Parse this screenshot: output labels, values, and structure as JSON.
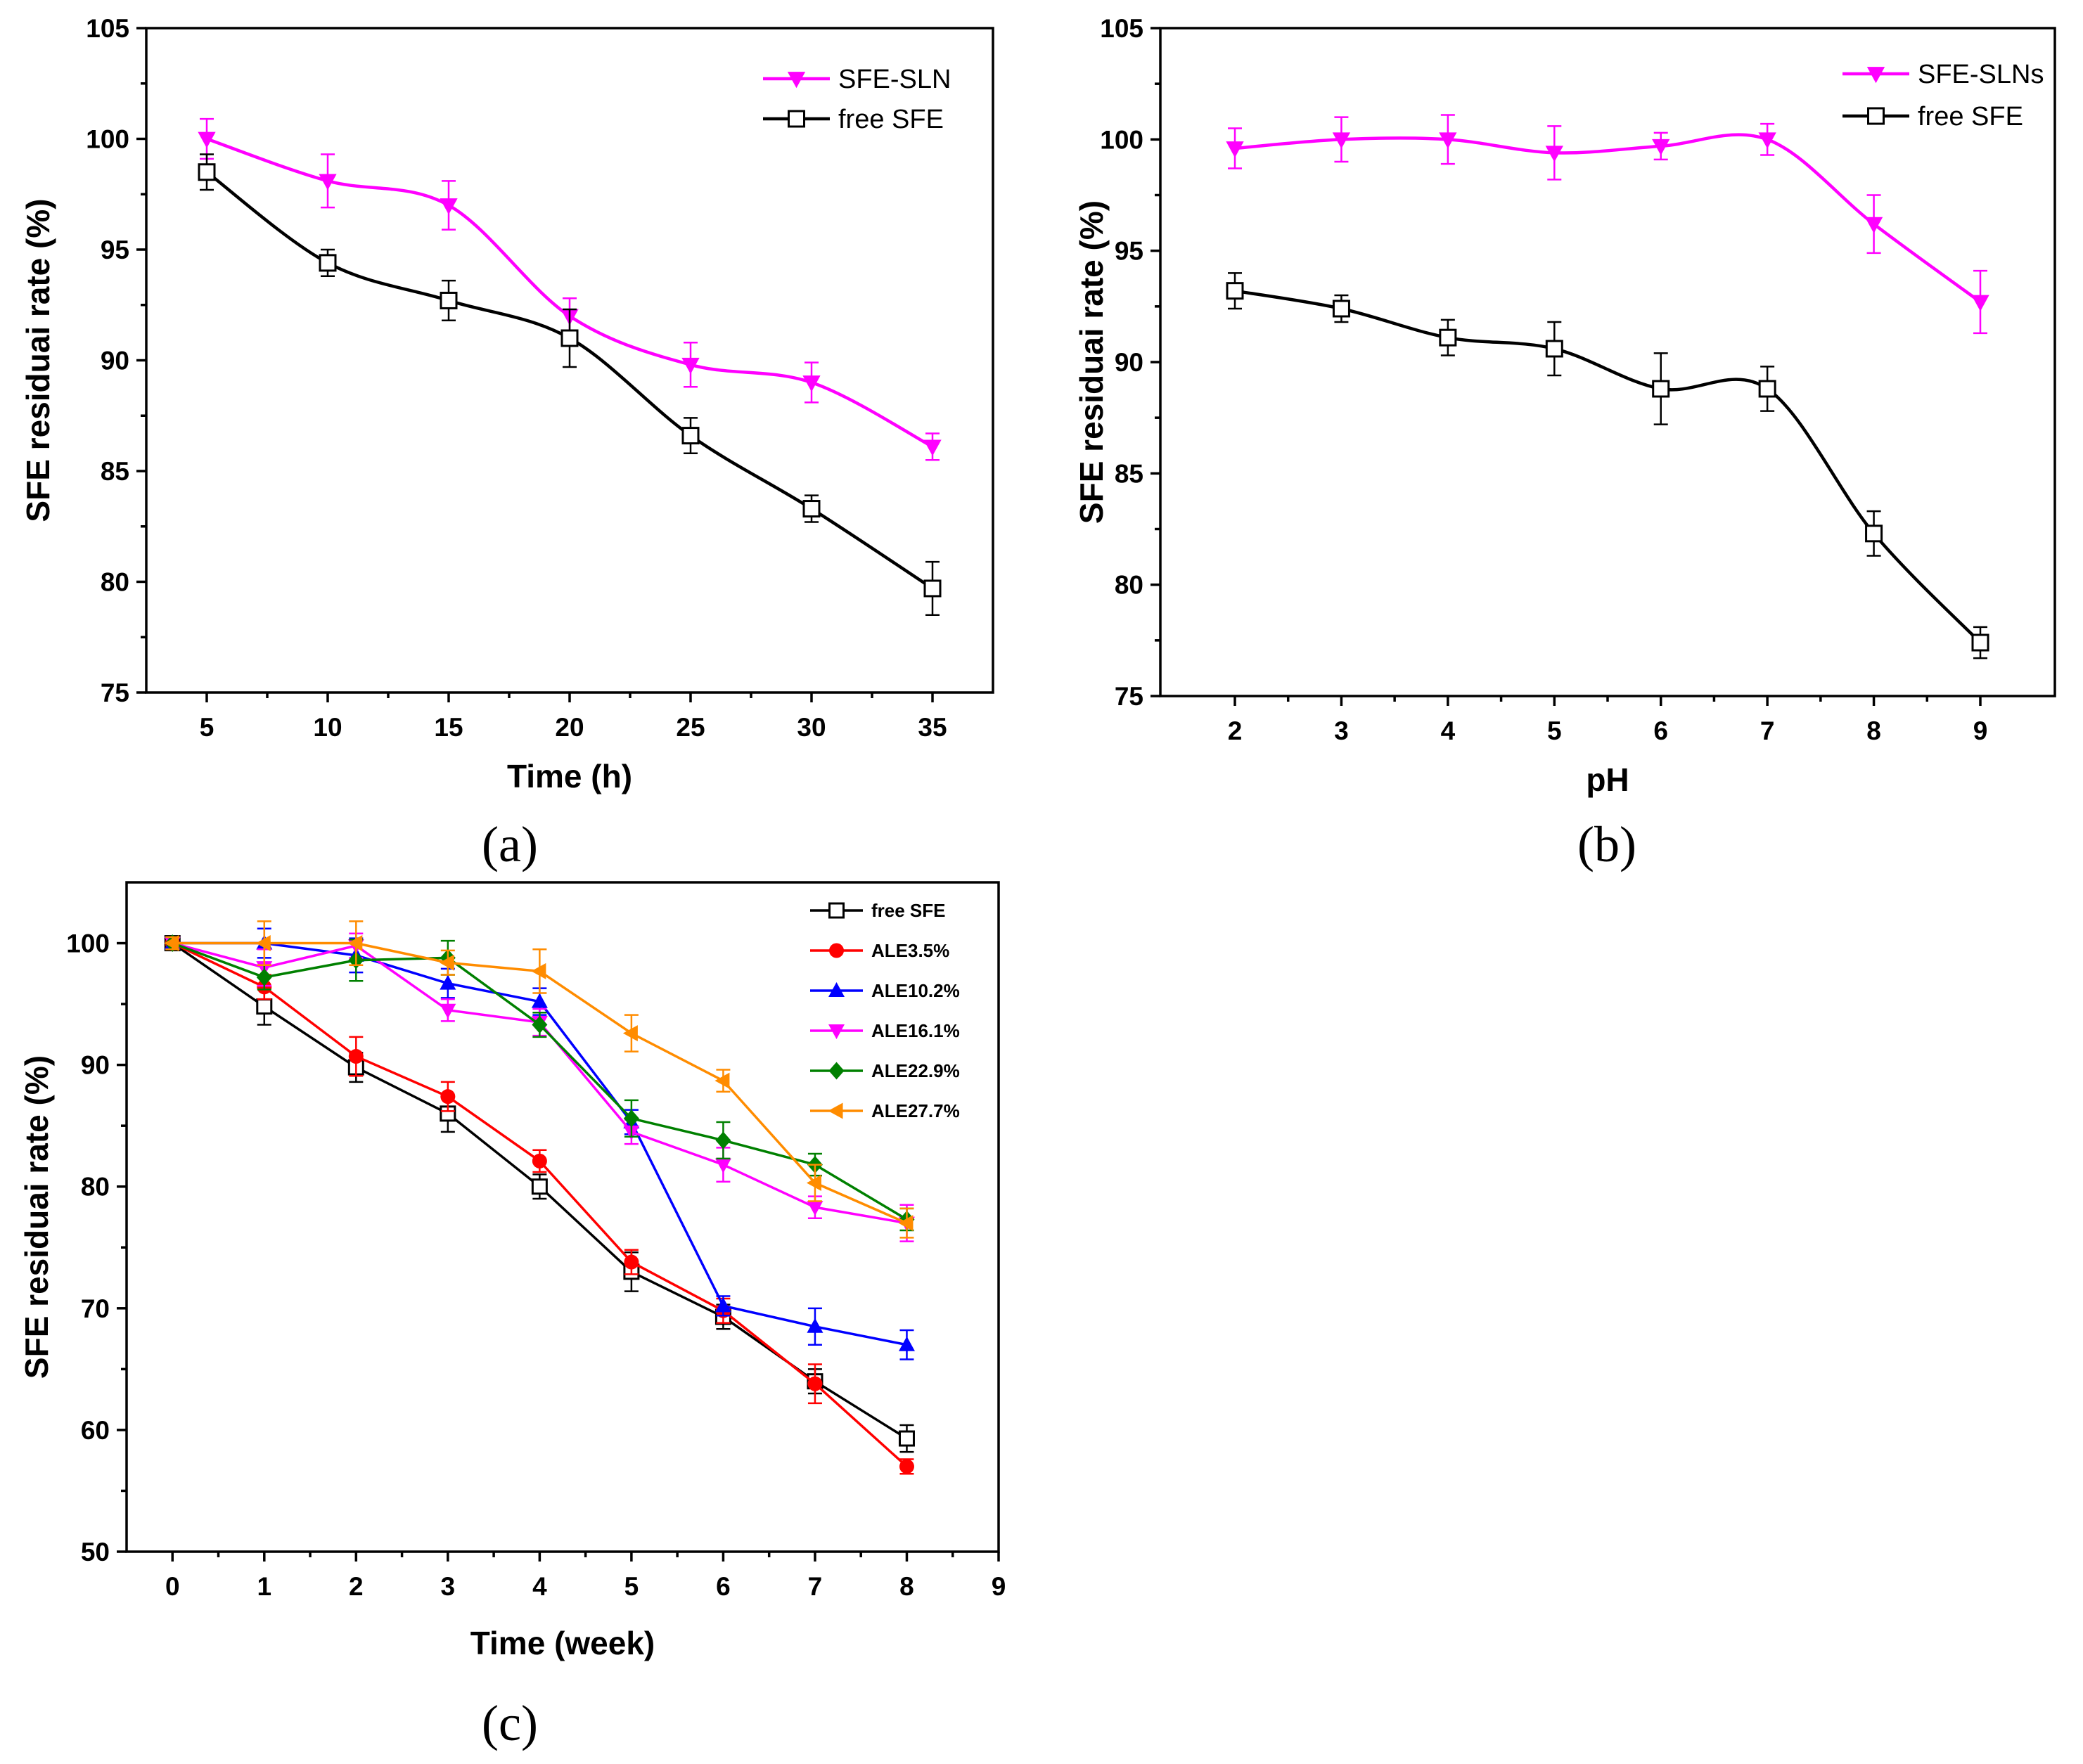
{
  "chart_data": [
    {
      "panel": "a",
      "label": "(a)",
      "type": "line",
      "xlabel": "Time (h)",
      "ylabel": "SFE residuai rate (%)",
      "xlim": [
        2.5,
        37.5
      ],
      "ylim": [
        75,
        105
      ],
      "xticks": [
        5,
        10,
        15,
        20,
        25,
        30,
        35
      ],
      "yticks": [
        75,
        80,
        85,
        90,
        95,
        100,
        105
      ],
      "legend_position": "top-right",
      "series": [
        {
          "name": "SFE-SLN",
          "color": "#ff00ff",
          "marker": "triangle-down",
          "x": [
            5,
            10,
            15,
            20,
            25,
            30,
            35
          ],
          "values": [
            100.0,
            98.1,
            97.0,
            92.0,
            89.8,
            89.0,
            86.1
          ],
          "errors": [
            0.9,
            1.2,
            1.1,
            0.8,
            1.0,
            0.9,
            0.6
          ]
        },
        {
          "name": "free SFE",
          "color": "#000000",
          "marker": "square-open",
          "x": [
            5,
            10,
            15,
            20,
            25,
            30,
            35
          ],
          "values": [
            98.5,
            94.4,
            92.7,
            91.0,
            86.6,
            83.3,
            79.7
          ],
          "errors": [
            0.8,
            0.6,
            0.9,
            1.3,
            0.8,
            0.6,
            1.2
          ]
        }
      ]
    },
    {
      "panel": "b",
      "label": "(b)",
      "type": "line",
      "xlabel": "pH",
      "ylabel": "SFE residuai rate (%)",
      "xlim": [
        1.3,
        9.7
      ],
      "ylim": [
        75,
        105
      ],
      "xticks": [
        2,
        3,
        4,
        5,
        6,
        7,
        8,
        9
      ],
      "yticks": [
        75,
        80,
        85,
        90,
        95,
        100,
        105
      ],
      "legend_position": "top-right",
      "series": [
        {
          "name": "SFE-SLNs",
          "color": "#ff00ff",
          "marker": "triangle-down",
          "x": [
            2,
            3,
            4,
            5,
            6,
            7,
            8,
            9
          ],
          "values": [
            99.6,
            100.0,
            100.0,
            99.4,
            99.7,
            100.0,
            96.2,
            92.7
          ],
          "errors": [
            0.9,
            1.0,
            1.1,
            1.2,
            0.6,
            0.7,
            1.3,
            1.4
          ]
        },
        {
          "name": "free SFE",
          "color": "#000000",
          "marker": "square-open",
          "x": [
            2,
            3,
            4,
            5,
            6,
            7,
            8,
            9
          ],
          "values": [
            93.2,
            92.4,
            91.1,
            90.6,
            88.8,
            88.8,
            82.3,
            77.4
          ],
          "errors": [
            0.8,
            0.6,
            0.8,
            1.2,
            1.6,
            1.0,
            1.0,
            0.7
          ]
        }
      ]
    },
    {
      "panel": "c",
      "label": "(c)",
      "type": "line",
      "xlabel": "Time (week)",
      "ylabel": "SFE residuai rate (%)",
      "xlim": [
        -0.5,
        9
      ],
      "ylim": [
        50,
        105
      ],
      "xticks": [
        0,
        1,
        2,
        3,
        4,
        5,
        6,
        7,
        8,
        9
      ],
      "yticks": [
        50,
        60,
        70,
        80,
        90,
        100
      ],
      "legend_position": "top-right",
      "series": [
        {
          "name": "free SFE",
          "color": "#000000",
          "marker": "square-open",
          "x": [
            0,
            1,
            2,
            3,
            4,
            5,
            6,
            7,
            8
          ],
          "values": [
            100,
            94.8,
            89.8,
            86.0,
            80.0,
            73.0,
            69.3,
            64.0,
            59.3
          ],
          "errors": [
            0.5,
            1.5,
            1.2,
            1.5,
            1.0,
            1.6,
            1.0,
            1.0,
            1.1
          ]
        },
        {
          "name": "ALE3.5%",
          "color": "#ff0000",
          "marker": "circle",
          "x": [
            0,
            1,
            2,
            3,
            4,
            5,
            6,
            7,
            8
          ],
          "values": [
            100,
            96.4,
            90.7,
            87.4,
            82.1,
            73.8,
            69.8,
            63.8,
            57.0
          ],
          "errors": [
            0.5,
            1.0,
            1.6,
            1.2,
            0.9,
            1.0,
            1.0,
            1.6,
            0.6
          ]
        },
        {
          "name": "ALE10.2%",
          "color": "#0000ff",
          "marker": "triangle-up",
          "x": [
            0,
            1,
            2,
            3,
            4,
            5,
            6,
            7,
            8
          ],
          "values": [
            100,
            100.0,
            99.0,
            96.7,
            95.2,
            85.3,
            70.2,
            68.5,
            67.0
          ],
          "errors": [
            0.5,
            1.2,
            1.4,
            1.2,
            1.1,
            1.0,
            0.8,
            1.5,
            1.2
          ]
        },
        {
          "name": "ALE16.1%",
          "color": "#ff00ff",
          "marker": "triangle-down",
          "x": [
            0,
            1,
            2,
            3,
            4,
            5,
            6,
            7,
            8
          ],
          "values": [
            100,
            98.0,
            99.8,
            94.5,
            93.5,
            84.5,
            81.8,
            78.3,
            77.0
          ],
          "errors": [
            0.5,
            1.5,
            1.0,
            0.9,
            1.1,
            1.0,
            1.4,
            0.9,
            1.5
          ]
        },
        {
          "name": "ALE22.9%",
          "color": "#008000",
          "marker": "diamond",
          "x": [
            0,
            1,
            2,
            3,
            4,
            5,
            6,
            7,
            8
          ],
          "values": [
            100,
            97.2,
            98.6,
            98.8,
            93.3,
            85.6,
            83.8,
            81.8,
            77.3
          ],
          "errors": [
            0.5,
            1.0,
            1.7,
            1.4,
            1.0,
            1.5,
            1.5,
            0.9,
            0.9
          ]
        },
        {
          "name": "ALE27.7%",
          "color": "#ff8c00",
          "marker": "triangle-left",
          "x": [
            0,
            1,
            2,
            3,
            4,
            5,
            6,
            7,
            8
          ],
          "values": [
            100,
            100.0,
            100.0,
            98.4,
            97.7,
            92.6,
            88.7,
            80.3,
            77.0
          ],
          "errors": [
            0.5,
            1.8,
            1.8,
            1.0,
            1.8,
            1.5,
            0.9,
            1.5,
            1.2
          ]
        }
      ]
    }
  ]
}
